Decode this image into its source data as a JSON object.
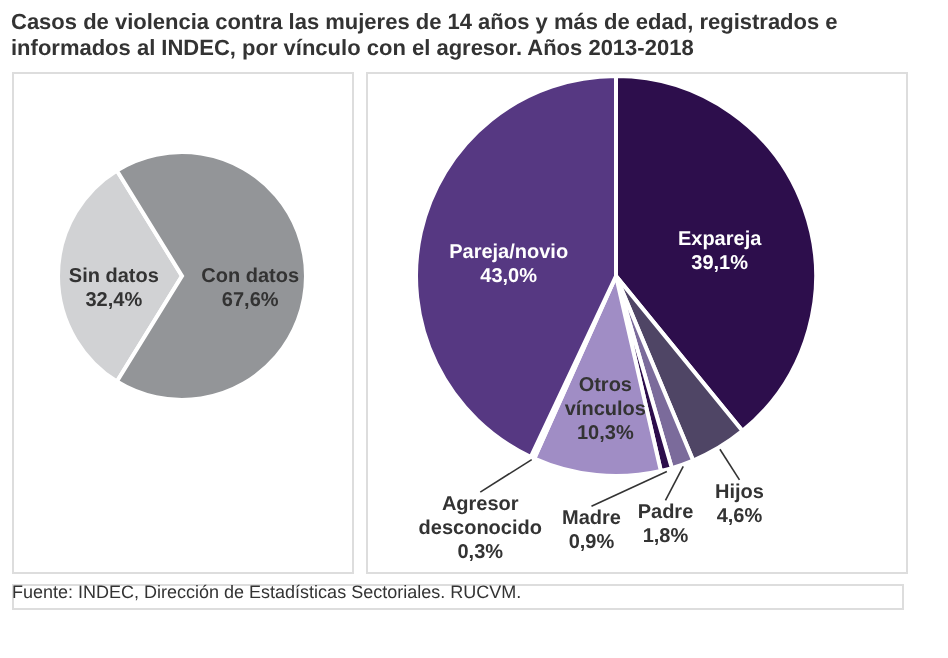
{
  "chart_data": [
    {
      "type": "pie",
      "title": "Casos de violencia contra las mujeres de 14 años y más de edad, registrados e informados al INDEC, por vínculo con el agresor. Años 2013-2018",
      "annotations": [
        "Fuente: INDEC, Dirección de Estadísticas Sectoriales. RUCVM."
      ],
      "categories": [
        "Sin datos",
        "Con datos"
      ],
      "values": [
        32.4,
        67.6
      ],
      "colors": [
        "#d1d2d4",
        "#939598"
      ],
      "value_labels": [
        "32,4%",
        "67,6%"
      ]
    },
    {
      "type": "pie",
      "categories": [
        "Expareja",
        "Hijos",
        "Padre",
        "Madre",
        "Otros vínculos",
        "Agresor desconocido",
        "Pareja/novio"
      ],
      "values": [
        39.1,
        4.6,
        1.8,
        0.9,
        10.3,
        0.3,
        43.0
      ],
      "colors": [
        "#2d0e4c",
        "#4f4565",
        "#7b6b9b",
        "#2d0e4c",
        "#a08dc5",
        "#5c4789",
        "#563882"
      ],
      "value_labels": [
        "39,1%",
        "4,6%",
        "1,8%",
        "0,9%",
        "10,3%",
        "0,3%",
        "43,0%"
      ]
    }
  ]
}
